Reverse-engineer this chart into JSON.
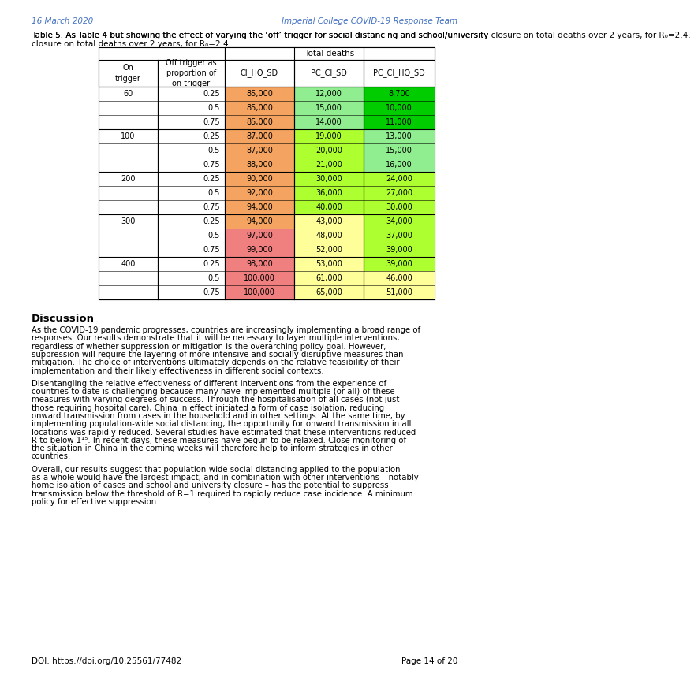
{
  "header_date": "16 March 2020",
  "header_right": "Imperial College COVID-19 Response Team",
  "table_caption": "Table 5. As Table 4 but showing the effect of varying the ‘off’ trigger for social distancing and school/university\nclosure on total deaths over 2 years, for R₀=2.4.",
  "col_headers": [
    "CI_HQ_SD",
    "PC_CI_SD",
    "PC_CI_HQ_SD"
  ],
  "col_header_group": "Total deaths",
  "row_header_on": "On\ntrigger",
  "row_header_off": "Off trigger as\nproportion of\non trigger",
  "on_triggers": [
    60,
    100,
    200,
    300,
    400
  ],
  "off_triggers": [
    0.25,
    0.5,
    0.75
  ],
  "data": [
    [
      85000,
      12000,
      8700
    ],
    [
      85000,
      15000,
      10000
    ],
    [
      85000,
      14000,
      11000
    ],
    [
      87000,
      19000,
      13000
    ],
    [
      87000,
      20000,
      15000
    ],
    [
      88000,
      21000,
      16000
    ],
    [
      90000,
      30000,
      24000
    ],
    [
      92000,
      36000,
      27000
    ],
    [
      94000,
      40000,
      30000
    ],
    [
      94000,
      43000,
      34000
    ],
    [
      97000,
      48000,
      37000
    ],
    [
      99000,
      52000,
      39000
    ],
    [
      98000,
      53000,
      39000
    ],
    [
      100000,
      61000,
      46000
    ],
    [
      100000,
      65000,
      51000
    ]
  ],
  "cell_colors": [
    [
      "#f4a460",
      "#90ee90",
      "#00cc00"
    ],
    [
      "#f4a460",
      "#90ee90",
      "#00cc00"
    ],
    [
      "#f4a460",
      "#90ee90",
      "#00cc00"
    ],
    [
      "#f4a460",
      "#adff2f",
      "#90ee90"
    ],
    [
      "#f4a460",
      "#adff2f",
      "#90ee90"
    ],
    [
      "#f4a460",
      "#adff2f",
      "#90ee90"
    ],
    [
      "#f4a460",
      "#adff2f",
      "#adff2f"
    ],
    [
      "#f4a460",
      "#adff2f",
      "#adff2f"
    ],
    [
      "#f4a460",
      "#adff2f",
      "#adff2f"
    ],
    [
      "#f4a460",
      "#ffff99",
      "#adff2f"
    ],
    [
      "#f08080",
      "#ffff99",
      "#adff2f"
    ],
    [
      "#f08080",
      "#ffff99",
      "#adff2f"
    ],
    [
      "#f08080",
      "#ffff99",
      "#adff2f"
    ],
    [
      "#f08080",
      "#ffff99",
      "#ffff99"
    ],
    [
      "#f08080",
      "#ffff99",
      "#ffff99"
    ]
  ],
  "discussion_title": "Discussion",
  "para1": "As the COVID-19 pandemic progresses, countries are increasingly implementing a broad range of responses. Our results demonstrate that it will be necessary to layer multiple interventions, regardless of whether suppression or mitigation is the overarching policy goal. However, suppression will require the layering of more intensive and socially disruptive measures than mitigation. The choice of interventions ultimately depends on the relative feasibility of their implementation and their likely effectiveness in different social contexts.",
  "para2": "Disentangling the relative effectiveness of different interventions from the experience of countries to date is challenging because many have implemented multiple (or all) of these measures with varying degrees of success. Through the hospitalisation of all cases (not just those requiring hospital care), China in effect initiated a form of case isolation, reducing onward transmission from cases in the household and in other settings. At the same time, by implementing population-wide social distancing, the opportunity for onward transmission in all locations was rapidly reduced. Several studies have estimated that these interventions reduced R to below 1¹⁵. In recent days, these measures have begun to be relaxed. Close monitoring of the situation in China in the coming weeks will therefore help to inform strategies in other countries.",
  "para3": "Overall, our results suggest that population-wide social distancing applied to the population as a whole would have the largest impact; and in combination with other interventions – notably home isolation of cases and school and university closure – has the potential to suppress transmission below the threshold of R=1 required to rapidly reduce case incidence. A minimum policy for effective suppression",
  "footer_doi": "DOI: https://doi.org/10.25561/77482",
  "footer_page": "Page 14 of 20",
  "bg_color": "#ffffff"
}
